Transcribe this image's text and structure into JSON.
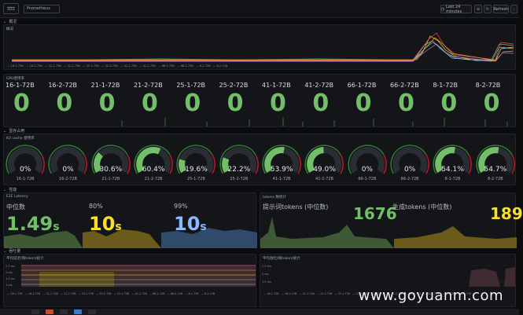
{
  "topbar": {
    "logo": "tttt",
    "datasource": "Prometheus",
    "time_range": "Last 24 minutes",
    "refresh": "Refresh"
  },
  "sections": {
    "overview": "概况",
    "gpu": "GPU使用率",
    "gauges": "显存占用",
    "latency": "性能",
    "throughput": "吞吐量"
  },
  "gpu_panel_title": "GPU使用率",
  "gpu_stats": [
    {
      "name": "16-1-72B",
      "value": "0"
    },
    {
      "name": "16-2-72B",
      "value": "0"
    },
    {
      "name": "21-1-72B",
      "value": "0"
    },
    {
      "name": "21-2-72B",
      "value": "0"
    },
    {
      "name": "25-1-72B",
      "value": "0"
    },
    {
      "name": "25-2-72B",
      "value": "0"
    },
    {
      "name": "41-1-72B",
      "value": "0"
    },
    {
      "name": "41-2-72B",
      "value": "0"
    },
    {
      "name": "66-1-72B",
      "value": "0"
    },
    {
      "name": "66-2-72B",
      "value": "0"
    },
    {
      "name": "8-1-72B",
      "value": "0"
    },
    {
      "name": "8-2-72B",
      "value": "0"
    }
  ],
  "gauges_title": "KV cache 使用率",
  "gauges": [
    {
      "name": "16-1-72B",
      "value": "0%",
      "pct": 0
    },
    {
      "name": "16-2-72B",
      "value": "0%",
      "pct": 0
    },
    {
      "name": "21-1-72B",
      "value": "30.6%",
      "pct": 30.6
    },
    {
      "name": "21-2-72B",
      "value": "60.4%",
      "pct": 60.4
    },
    {
      "name": "25-1-72B",
      "value": "19.6%",
      "pct": 19.6
    },
    {
      "name": "25-2-72B",
      "value": "22.2%",
      "pct": 22.2
    },
    {
      "name": "41-1-72B",
      "value": "53.9%",
      "pct": 53.9
    },
    {
      "name": "41-2-72B",
      "value": "49.0%",
      "pct": 49.0
    },
    {
      "name": "66-1-72B",
      "value": "0%",
      "pct": 0
    },
    {
      "name": "66-2-72B",
      "value": "0%",
      "pct": 0
    },
    {
      "name": "8-1-72B",
      "value": "54.1%",
      "pct": 54.1
    },
    {
      "name": "8-2-72B",
      "value": "54.7%",
      "pct": 54.7
    }
  ],
  "latency_panel": {
    "title": "E2E Latency",
    "median_label": "中位数",
    "median_value": "1.49",
    "median_unit": "s",
    "p80_label": "80%",
    "p80_value": "10",
    "p80_unit": "s",
    "p99_label": "99%",
    "p99_value": "10",
    "p99_unit": "s"
  },
  "tokens_panel": {
    "title": "tokens 数统计",
    "prompt_label": "提示词tokens (中位数)",
    "prompt_value": "1676",
    "gen_label": "生成tokens (中位数)",
    "gen_value": "189"
  },
  "bottom_left_title": "平均延迟(每token)统计",
  "bottom_right_title": "平均吞吐(每token)统计",
  "watermark": "www.goyuanm.com",
  "colors": {
    "green": "#73bf69",
    "yellow": "#fade2a",
    "blue": "#8ab8ff",
    "panel_bg": "#141518"
  }
}
